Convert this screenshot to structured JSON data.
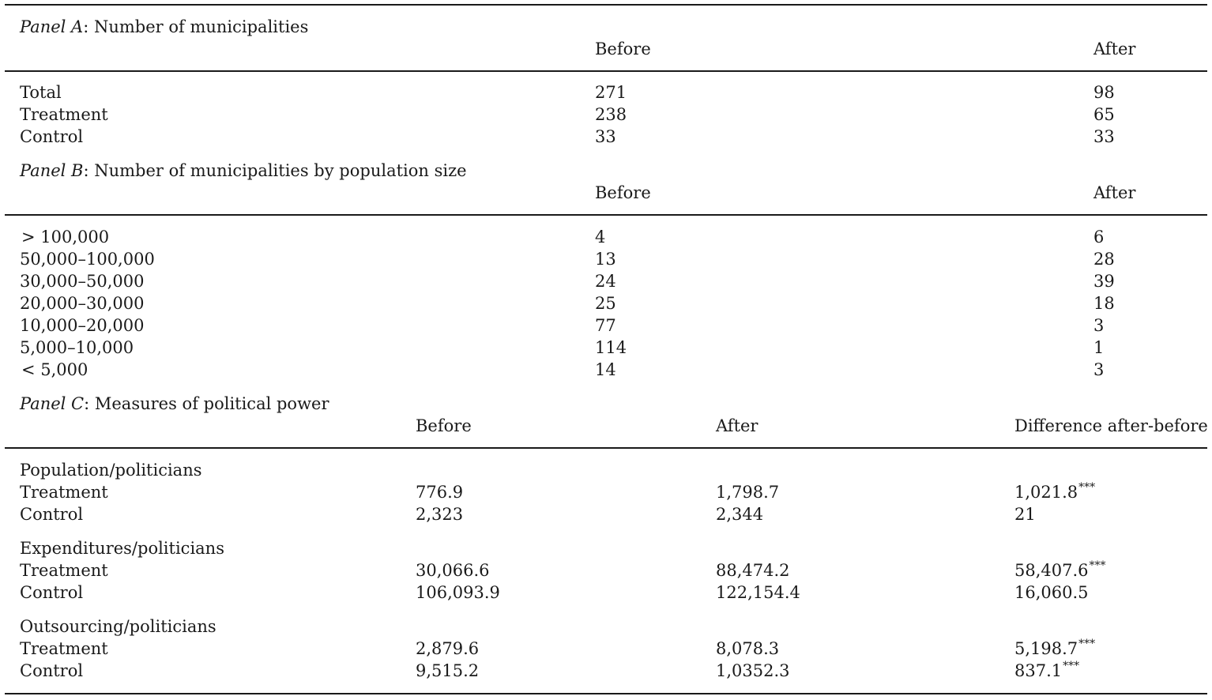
{
  "panel_a": {
    "label": "Panel A",
    "title": ": Number of municipalities",
    "col_before": "Before",
    "col_after": "After",
    "rows": [
      {
        "label": "Total",
        "before": "271",
        "after": "98"
      },
      {
        "label": "Treatment",
        "before": "238",
        "after": "65"
      },
      {
        "label": "Control",
        "before": "33",
        "after": "33"
      }
    ]
  },
  "panel_b": {
    "label": "Panel B",
    "title": ": Number of municipalities by population size",
    "col_before": "Before",
    "col_after": "After",
    "rows": [
      {
        "label": "> 100,000",
        "before": "4",
        "after": "6"
      },
      {
        "label": "50,000–100,000",
        "before": "13",
        "after": "28"
      },
      {
        "label": "30,000–50,000",
        "before": "24",
        "after": "39"
      },
      {
        "label": "20,000–30,000",
        "before": "25",
        "after": "18"
      },
      {
        "label": "10,000–20,000",
        "before": "77",
        "after": "3"
      },
      {
        "label": "5,000–10,000",
        "before": "114",
        "after": "1"
      },
      {
        "label": "< 5,000",
        "before": "14",
        "after": "3"
      }
    ]
  },
  "panel_c": {
    "label": "Panel C",
    "title": ": Measures of political power",
    "col_before": "Before",
    "col_after": "After",
    "col_diff": "Difference after-before",
    "groups": [
      {
        "heading": "Population/politicians",
        "rows": [
          {
            "label": "Treatment",
            "before": "776.9",
            "after": "1,798.7",
            "diff": "1,021.8",
            "sig": "***"
          },
          {
            "label": "Control",
            "before": "2,323",
            "after": "2,344",
            "diff": "21",
            "sig": ""
          }
        ]
      },
      {
        "heading": "Expenditures/politicians",
        "rows": [
          {
            "label": "Treatment",
            "before": "30,066.6",
            "after": "88,474.2",
            "diff": "58,407.6",
            "sig": "***"
          },
          {
            "label": "Control",
            "before": "106,093.9",
            "after": "122,154.4",
            "diff": "16,060.5",
            "sig": ""
          }
        ]
      },
      {
        "heading": "Outsourcing/politicians",
        "rows": [
          {
            "label": "Treatment",
            "before": "2,879.6",
            "after": "8,078.3",
            "diff": "5,198.7",
            "sig": "***"
          },
          {
            "label": "Control",
            "before": "9,515.2",
            "after": "1,0352.3",
            "diff": "837.1",
            "sig": "***"
          }
        ]
      }
    ]
  }
}
